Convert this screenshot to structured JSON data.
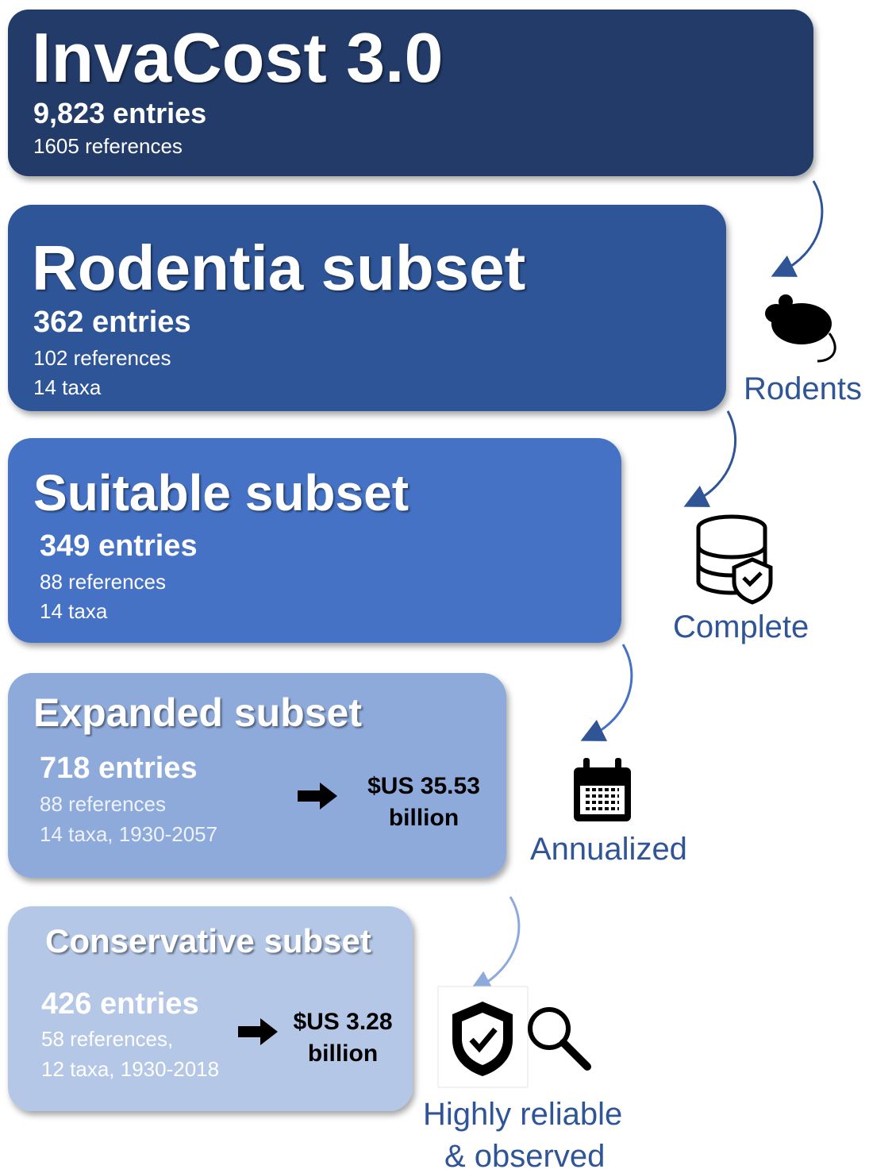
{
  "boxes": [
    {
      "title": "InvaCost 3.0",
      "entries": "9,823 entries",
      "details": [
        "1605 references"
      ]
    },
    {
      "title": "Rodentia subset",
      "entries": "362 entries",
      "details": [
        "102 references",
        "14 taxa"
      ]
    },
    {
      "title": "Suitable subset",
      "entries": "349 entries",
      "details": [
        "88 references",
        "14 taxa"
      ]
    },
    {
      "title": "Expanded subset",
      "entries": "718 entries",
      "details": [
        "88 references",
        "14 taxa, 1930-2057"
      ],
      "cost": [
        "$US 35.53",
        "billion"
      ]
    },
    {
      "title": "Conservative subset",
      "entries": "426 entries",
      "details": [
        "58 references,",
        "12 taxa, 1930-2018"
      ],
      "cost": [
        "$US 3.28",
        "billion"
      ]
    }
  ],
  "filters": [
    {
      "label": [
        "Rodents"
      ]
    },
    {
      "label": [
        "Complete"
      ]
    },
    {
      "label": [
        "Annualized"
      ]
    },
    {
      "label": [
        "Highly reliable",
        "& observed"
      ]
    }
  ]
}
